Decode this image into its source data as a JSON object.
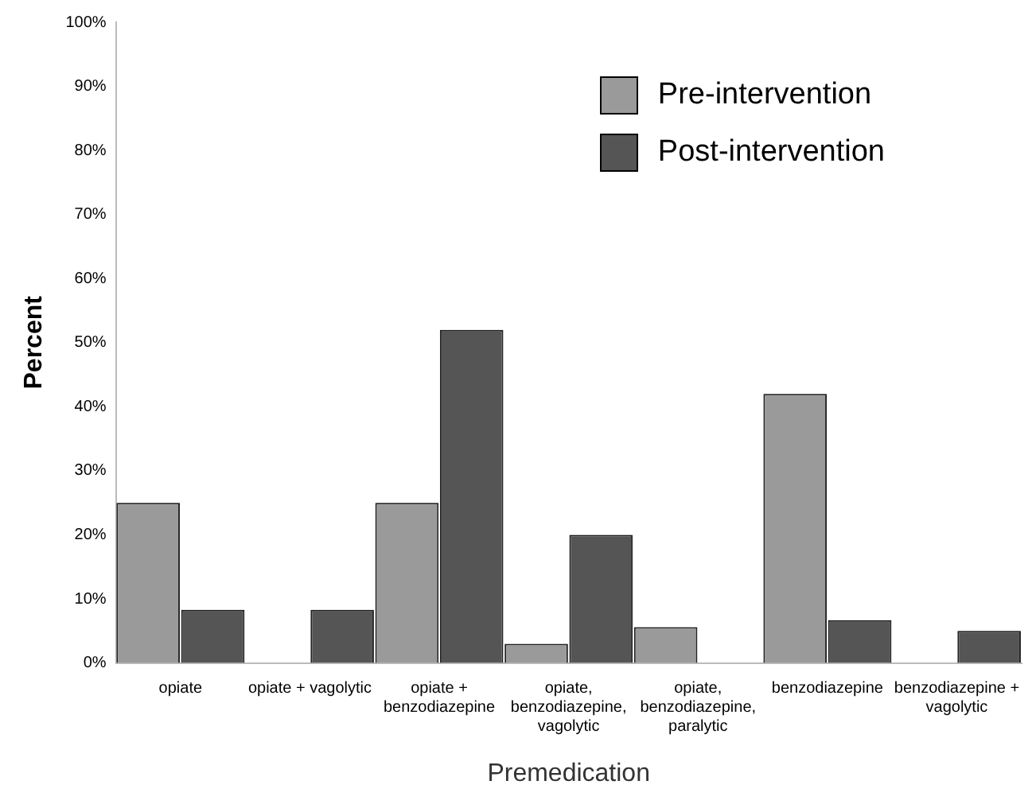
{
  "chart_data": {
    "type": "bar",
    "xlabel": "Premedication",
    "ylabel": "Percent",
    "categories": [
      "opiate",
      "opiate + vagolytic",
      "opiate + benzodiazepine",
      "opiate, benzodiazepine, vagolytic",
      "opiate, benzodiazepine, paralytic",
      "benzodiazepine",
      "benzodiazepine + vagolytic"
    ],
    "series": [
      {
        "name": "Pre-intervention",
        "color": "#9a9a9a",
        "values": [
          25,
          0,
          25,
          3,
          5.6,
          42,
          0
        ]
      },
      {
        "name": "Post-intervention",
        "color": "#555555",
        "values": [
          8.3,
          8.3,
          52,
          20,
          0,
          6.7,
          5
        ]
      }
    ],
    "ylim": [
      0,
      100
    ],
    "yticks": [
      {
        "value": 0,
        "label": "0%"
      },
      {
        "value": 10,
        "label": "10%"
      },
      {
        "value": 20,
        "label": "20%"
      },
      {
        "value": 30,
        "label": "30%"
      },
      {
        "value": 40,
        "label": "40%"
      },
      {
        "value": 50,
        "label": "50%"
      },
      {
        "value": 60,
        "label": "60%"
      },
      {
        "value": 70,
        "label": "70%"
      },
      {
        "value": 80,
        "label": "80%"
      },
      {
        "value": 90,
        "label": "90%"
      },
      {
        "value": 100,
        "label": "100%"
      }
    ],
    "grid": false,
    "legend": "top right"
  }
}
